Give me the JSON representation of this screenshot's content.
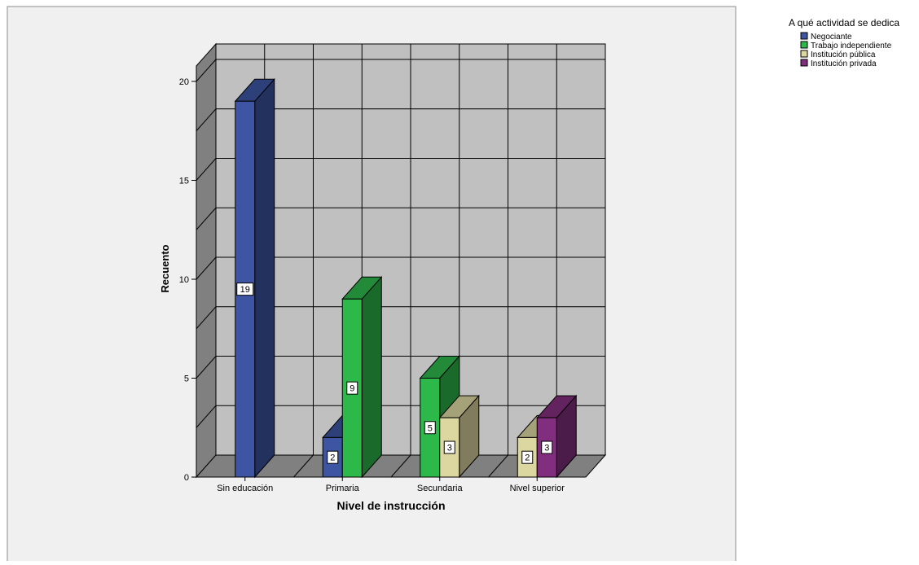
{
  "chart_data": {
    "type": "bar",
    "xlabel": "Nivel de instrucción",
    "ylabel": "Recuento",
    "categories": [
      "Sin educación",
      "Primaria",
      "Secundaria",
      "Nivel superior"
    ],
    "ylim": [
      0,
      20
    ],
    "yticks": [
      0,
      5,
      10,
      15,
      20
    ],
    "grid": true,
    "legend_title": "A qué actividad se dedica",
    "legend_position": "top-right",
    "series": [
      {
        "name": "Negociante",
        "color": "#3d55a3",
        "values": [
          19,
          2,
          null,
          null
        ]
      },
      {
        "name": "Trabajo independiente",
        "color": "#2db84a",
        "values": [
          null,
          9,
          5,
          null
        ]
      },
      {
        "name": "Institución pública",
        "color": "#dcd6a1",
        "values": [
          null,
          null,
          3,
          2
        ]
      },
      {
        "name": "Institución privada",
        "color": "#822e7e",
        "values": [
          null,
          null,
          null,
          3
        ]
      }
    ]
  }
}
